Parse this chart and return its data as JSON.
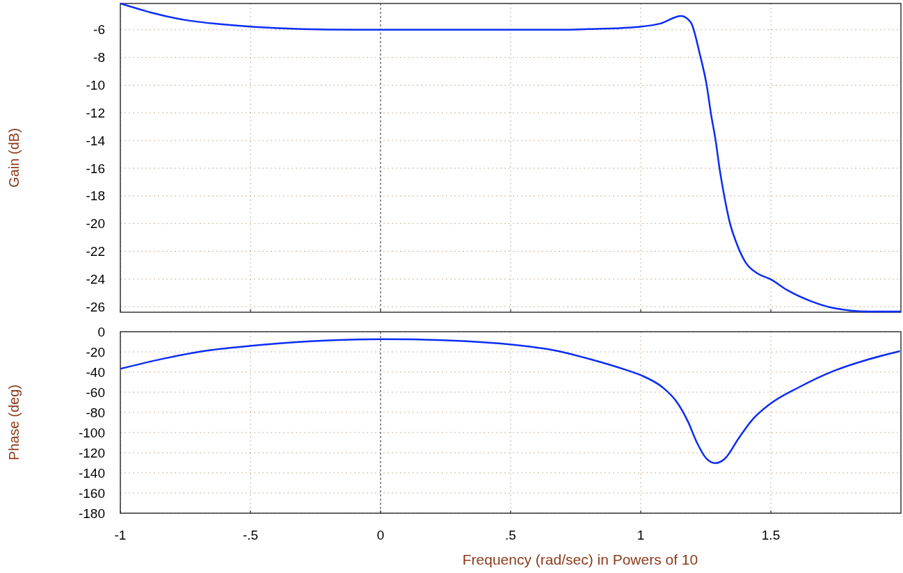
{
  "chart_data": [
    {
      "type": "line",
      "ylabel": "Gain (dB)",
      "xlim": [
        -1,
        2
      ],
      "ylim": [
        -26.4,
        -4.1
      ],
      "yticks": [
        -6,
        -8,
        -10,
        -12,
        -14,
        -16,
        -18,
        -20,
        -22,
        -24,
        -26
      ],
      "tick_labels": "y",
      "grid": true,
      "ref_lines": [
        {
          "axis": "x",
          "value": 0,
          "color": "#404040",
          "line_style": "dashed"
        }
      ],
      "series": [
        {
          "color": "#0a2cf5",
          "x": [
            -1,
            -0.883,
            -0.749,
            -0.615,
            -0.482,
            -0.306,
            -0.1,
            0.2,
            0.5,
            0.7,
            0.8,
            0.9,
            0.987,
            1.075,
            1.155,
            1.182,
            1.195,
            1.227,
            1.254,
            1.27,
            1.288,
            1.302,
            1.32,
            1.342,
            1.368,
            1.403,
            1.449,
            1.497,
            1.563,
            1.654,
            1.742,
            1.876,
            2
          ],
          "values": [
            -4.1,
            -4.75,
            -5.3,
            -5.6,
            -5.8,
            -5.95,
            -6,
            -6,
            -6,
            -6,
            -5.95,
            -5.9,
            -5.8,
            -5.55,
            -5,
            -5.25,
            -5.55,
            -7.75,
            -10.06,
            -12.07,
            -14,
            -15.9,
            -17.9,
            -19.9,
            -21.4,
            -22.8,
            -23.6,
            -24,
            -24.8,
            -25.6,
            -26.1,
            -26.35,
            -26.35
          ]
        }
      ]
    },
    {
      "type": "line",
      "ylabel": "Phase (deg)",
      "xlabel": "Frequency (rad/sec) in Powers of 10",
      "xlim": [
        -1,
        2
      ],
      "xticks": [
        -1,
        {
          "value": -0.5,
          "label": "-.5"
        },
        0,
        {
          "value": 0.5,
          "label": ".5"
        },
        1,
        1.5
      ],
      "ylim": [
        -180,
        0
      ],
      "yticks": [
        0,
        -20,
        -40,
        -60,
        -80,
        -100,
        -120,
        -140,
        -160,
        -180
      ],
      "grid": true,
      "ref_lines": [
        {
          "axis": "x",
          "value": 0,
          "color": "#404040",
          "line_style": "dashed"
        }
      ],
      "series": [
        {
          "color": "#0a2cf5",
          "x": [
            -1,
            -0.836,
            -0.682,
            -0.497,
            -0.27,
            0.007,
            0.242,
            0.415,
            0.674,
            0.808,
            0.941,
            1.003,
            1.083,
            1.136,
            1.182,
            1.216,
            1.253,
            1.286,
            1.323,
            1.377,
            1.43,
            1.494,
            1.609,
            1.742,
            1.876,
            1.996
          ],
          "values": [
            -36.8,
            -26.8,
            -19.3,
            -14,
            -9.5,
            -7.4,
            -8.4,
            -10.8,
            -18.8,
            -27.4,
            -37.7,
            -43.4,
            -55,
            -68.8,
            -89.4,
            -110,
            -126,
            -130.3,
            -126,
            -105.5,
            -87,
            -72.2,
            -55,
            -38.9,
            -27.4,
            -19.3
          ]
        }
      ]
    }
  ]
}
